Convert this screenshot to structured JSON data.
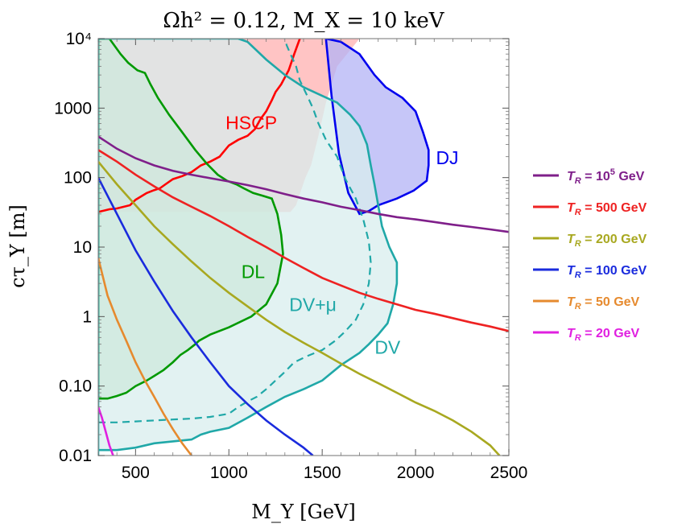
{
  "chart_data": {
    "type": "line",
    "title": "Ωh² = 0.12,  M_X = 10 keV",
    "xlabel": "M_Y [GeV]",
    "ylabel": "cτ_Y [m]",
    "xlim": [
      300,
      2500
    ],
    "ylim": [
      0.01,
      10000
    ],
    "yscale": "log",
    "xticks": [
      {
        "value": 500,
        "label": "500"
      },
      {
        "value": 1000,
        "label": "1000"
      },
      {
        "value": 1500,
        "label": "1500"
      },
      {
        "value": 2000,
        "label": "2000"
      },
      {
        "value": 2500,
        "label": "2500"
      }
    ],
    "yticks": [
      {
        "value": 0.01,
        "label": "0.01"
      },
      {
        "value": 0.1,
        "label": "0.10"
      },
      {
        "value": 1,
        "label": "1"
      },
      {
        "value": 10,
        "label": "10"
      },
      {
        "value": 100,
        "label": "100"
      },
      {
        "value": 1000,
        "label": "1000"
      },
      {
        "value": 10000,
        "label": "10⁴"
      }
    ],
    "regions": [
      {
        "name": "HSCP",
        "label": "HSCP",
        "color": "#ff0000",
        "fill": "#ffb0b0",
        "label_at": [
          1120,
          500
        ],
        "boundary": [
          [
            300,
            10000
          ],
          [
            1700,
            10000
          ],
          [
            1580,
            4000
          ],
          [
            1520,
            1200
          ],
          [
            1480,
            400
          ],
          [
            1440,
            150
          ],
          [
            1410,
            100
          ],
          [
            1360,
            40
          ],
          [
            1330,
            32
          ],
          [
            300,
            32
          ]
        ],
        "edge": [
          [
            300,
            32
          ],
          [
            360,
            35
          ],
          [
            400,
            36
          ],
          [
            470,
            40
          ],
          [
            500,
            48
          ],
          [
            560,
            60
          ],
          [
            600,
            66
          ],
          [
            630,
            70
          ],
          [
            660,
            80
          ],
          [
            700,
            95
          ],
          [
            750,
            105
          ],
          [
            800,
            120
          ],
          [
            850,
            150
          ],
          [
            900,
            170
          ],
          [
            950,
            200
          ],
          [
            1000,
            290
          ],
          [
            1050,
            350
          ],
          [
            1100,
            400
          ],
          [
            1140,
            500
          ],
          [
            1170,
            700
          ],
          [
            1200,
            900
          ],
          [
            1230,
            1300
          ],
          [
            1250,
            1700
          ],
          [
            1280,
            2200
          ],
          [
            1320,
            3500
          ],
          [
            1350,
            6000
          ],
          [
            1380,
            10000
          ]
        ]
      },
      {
        "name": "DJ",
        "label": "DJ",
        "color": "#0000ee",
        "fill": "#b3b3f5",
        "label_at": [
          2170,
          155
        ],
        "boundary": [
          [
            1520,
            10000
          ],
          [
            1600,
            9000
          ],
          [
            1700,
            6000
          ],
          [
            1780,
            3000
          ],
          [
            1840,
            2000
          ],
          [
            1930,
            1400
          ],
          [
            2000,
            900
          ],
          [
            2040,
            450
          ],
          [
            2070,
            250
          ],
          [
            2070,
            150
          ],
          [
            2060,
            90
          ],
          [
            1990,
            65
          ],
          [
            1900,
            50
          ],
          [
            1800,
            40
          ],
          [
            1750,
            33
          ],
          [
            1700,
            30
          ],
          [
            1640,
            60
          ],
          [
            1590,
            220
          ],
          [
            1550,
            1500
          ],
          [
            1520,
            10000
          ]
        ]
      },
      {
        "name": "DL",
        "label": "DL",
        "color": "#009900",
        "fill": "#b0d8a8",
        "label_at": [
          1130,
          3.6
        ],
        "boundary": [
          [
            300,
            10000
          ],
          [
            360,
            10000
          ],
          [
            420,
            6000
          ],
          [
            460,
            4500
          ],
          [
            510,
            3500
          ],
          [
            550,
            3200
          ],
          [
            580,
            2200
          ],
          [
            620,
            1400
          ],
          [
            680,
            800
          ],
          [
            750,
            450
          ],
          [
            820,
            250
          ],
          [
            880,
            160
          ],
          [
            940,
            110
          ],
          [
            990,
            90
          ],
          [
            1040,
            80
          ],
          [
            1080,
            70
          ],
          [
            1130,
            60
          ],
          [
            1180,
            55
          ],
          [
            1230,
            50
          ],
          [
            1260,
            30
          ],
          [
            1280,
            15
          ],
          [
            1290,
            8
          ],
          [
            1260,
            3
          ],
          [
            1200,
            1.5
          ],
          [
            1120,
            1
          ],
          [
            1000,
            0.7
          ],
          [
            900,
            0.55
          ],
          [
            840,
            0.45
          ],
          [
            820,
            0.4
          ],
          [
            780,
            0.33
          ],
          [
            740,
            0.28
          ],
          [
            700,
            0.22
          ],
          [
            650,
            0.17
          ],
          [
            600,
            0.14
          ],
          [
            560,
            0.12
          ],
          [
            500,
            0.1
          ],
          [
            450,
            0.08
          ],
          [
            400,
            0.072
          ],
          [
            350,
            0.066
          ],
          [
            300,
            0.066
          ]
        ]
      },
      {
        "name": "DV",
        "label": "DV",
        "color": "#20a8a8",
        "fill": "#d8eeee",
        "label_at": [
          1850,
          0.29
        ],
        "boundary": [
          [
            300,
            10000
          ],
          [
            1050,
            10000
          ],
          [
            1100,
            9000
          ],
          [
            1200,
            5000
          ],
          [
            1300,
            3000
          ],
          [
            1400,
            2000
          ],
          [
            1500,
            1500
          ],
          [
            1580,
            1200
          ],
          [
            1650,
            800
          ],
          [
            1700,
            550
          ],
          [
            1740,
            300
          ],
          [
            1760,
            150
          ],
          [
            1780,
            80
          ],
          [
            1800,
            40
          ],
          [
            1820,
            20
          ],
          [
            1860,
            10
          ],
          [
            1900,
            6
          ],
          [
            1900,
            3
          ],
          [
            1880,
            1.5
          ],
          [
            1850,
            0.8
          ],
          [
            1800,
            0.55
          ],
          [
            1750,
            0.4
          ],
          [
            1700,
            0.3
          ],
          [
            1600,
            0.2
          ],
          [
            1500,
            0.12
          ],
          [
            1400,
            0.09
          ],
          [
            1300,
            0.07
          ],
          [
            1200,
            0.05
          ],
          [
            1100,
            0.035
          ],
          [
            1000,
            0.025
          ],
          [
            900,
            0.022
          ],
          [
            850,
            0.02
          ],
          [
            800,
            0.017
          ],
          [
            700,
            0.016
          ],
          [
            600,
            0.015
          ],
          [
            500,
            0.013
          ],
          [
            400,
            0.012
          ],
          [
            300,
            0.012
          ],
          [
            300,
            0.01
          ],
          [
            300,
            10000
          ]
        ]
      }
    ],
    "dashed_boundary": {
      "name": "DV+μ",
      "label": "DV+μ",
      "color": "#20a8a8",
      "label_at": [
        1450,
        1.2
      ],
      "points": [
        [
          300,
          0.03
        ],
        [
          400,
          0.03
        ],
        [
          500,
          0.031
        ],
        [
          600,
          0.032
        ],
        [
          700,
          0.033
        ],
        [
          800,
          0.034
        ],
        [
          900,
          0.036
        ],
        [
          1000,
          0.04
        ],
        [
          1050,
          0.05
        ],
        [
          1100,
          0.06
        ],
        [
          1150,
          0.07
        ],
        [
          1200,
          0.09
        ],
        [
          1250,
          0.12
        ],
        [
          1300,
          0.16
        ],
        [
          1350,
          0.22
        ],
        [
          1420,
          0.27
        ],
        [
          1500,
          0.33
        ],
        [
          1570,
          0.45
        ],
        [
          1620,
          0.6
        ],
        [
          1680,
          0.9
        ],
        [
          1720,
          1.5
        ],
        [
          1750,
          3
        ],
        [
          1760,
          6
        ],
        [
          1750,
          12
        ],
        [
          1720,
          25
        ],
        [
          1680,
          50
        ],
        [
          1620,
          100
        ],
        [
          1580,
          200
        ],
        [
          1520,
          350
        ],
        [
          1480,
          600
        ],
        [
          1450,
          1000
        ],
        [
          1420,
          1500
        ],
        [
          1380,
          2500
        ],
        [
          1360,
          4000
        ],
        [
          1330,
          6000
        ],
        [
          1310,
          8000
        ],
        [
          1300,
          10000
        ]
      ]
    },
    "series": [
      {
        "name": "T_R = 10^5 GeV",
        "legend_prefix": "T",
        "legend_sub": "R",
        "legend_eq": " = 10",
        "legend_sup": "5",
        "legend_unit": " GeV",
        "color": "#7f1f8a",
        "x": [
          300,
          400,
          500,
          600,
          700,
          800,
          900,
          1000,
          1100,
          1200,
          1300,
          1400,
          1500,
          1600,
          1700,
          1800,
          1900,
          2000,
          2100,
          2200,
          2300,
          2400,
          2500
        ],
        "y": [
          390,
          260,
          190,
          150,
          125,
          110,
          98,
          88,
          78,
          68,
          58,
          50,
          44,
          38,
          34,
          30,
          27,
          25,
          23,
          21,
          19.5,
          18,
          16.5
        ]
      },
      {
        "name": "T_R = 500 GeV",
        "legend_prefix": "T",
        "legend_sub": "R",
        "legend_eq": " = 500",
        "legend_sup": "",
        "legend_unit": " GeV",
        "color": "#ee2222",
        "x": [
          300,
          400,
          500,
          600,
          700,
          800,
          900,
          1000,
          1100,
          1200,
          1300,
          1400,
          1500,
          1600,
          1700,
          1800,
          1900,
          2000,
          2100,
          2200,
          2300,
          2400,
          2500
        ],
        "y": [
          250,
          170,
          110,
          75,
          52,
          38,
          28,
          20,
          14,
          10,
          7,
          5,
          3.6,
          2.8,
          2.2,
          1.8,
          1.5,
          1.25,
          1.1,
          0.95,
          0.82,
          0.72,
          0.62
        ]
      },
      {
        "name": "T_R = 200 GeV",
        "legend_prefix": "T",
        "legend_sub": "R",
        "legend_eq": " = 200",
        "legend_sup": "",
        "legend_unit": " GeV",
        "color": "#a8a820",
        "x": [
          300,
          400,
          500,
          600,
          700,
          800,
          900,
          1000,
          1100,
          1200,
          1300,
          1400,
          1500,
          1600,
          1700,
          1800,
          1900,
          2000,
          2100,
          2200,
          2300,
          2400,
          2450
        ],
        "y": [
          170,
          80,
          40,
          20,
          11,
          6.2,
          3.6,
          2.2,
          1.4,
          0.9,
          0.6,
          0.42,
          0.3,
          0.21,
          0.15,
          0.11,
          0.08,
          0.058,
          0.044,
          0.032,
          0.022,
          0.014,
          0.01
        ]
      },
      {
        "name": "T_R = 100 GeV",
        "legend_prefix": "T",
        "legend_sub": "R",
        "legend_eq": " = 100",
        "legend_sup": "",
        "legend_unit": " GeV",
        "color": "#1a2bdd",
        "x": [
          300,
          400,
          500,
          600,
          700,
          800,
          900,
          1000,
          1100,
          1200,
          1300,
          1400,
          1450
        ],
        "y": [
          100,
          30,
          9,
          3.2,
          1.2,
          0.5,
          0.22,
          0.1,
          0.055,
          0.032,
          0.02,
          0.013,
          0.01
        ]
      },
      {
        "name": "T_R = 50 GeV",
        "legend_prefix": "T",
        "legend_sub": "R",
        "legend_eq": " = 50",
        "legend_sup": "",
        "legend_unit": " GeV",
        "color": "#e68a2e",
        "x": [
          300,
          350,
          400,
          450,
          500,
          550,
          600,
          650,
          700,
          750,
          800
        ],
        "y": [
          7,
          2,
          0.9,
          0.45,
          0.22,
          0.12,
          0.07,
          0.04,
          0.024,
          0.015,
          0.01
        ]
      },
      {
        "name": "T_R = 20 GeV",
        "legend_prefix": "T",
        "legend_sub": "R",
        "legend_eq": " = 20",
        "legend_sup": "",
        "legend_unit": " GeV",
        "color": "#e020e0",
        "x": [
          300,
          320,
          340,
          360,
          380
        ],
        "y": [
          0.05,
          0.035,
          0.022,
          0.014,
          0.01
        ]
      }
    ]
  }
}
